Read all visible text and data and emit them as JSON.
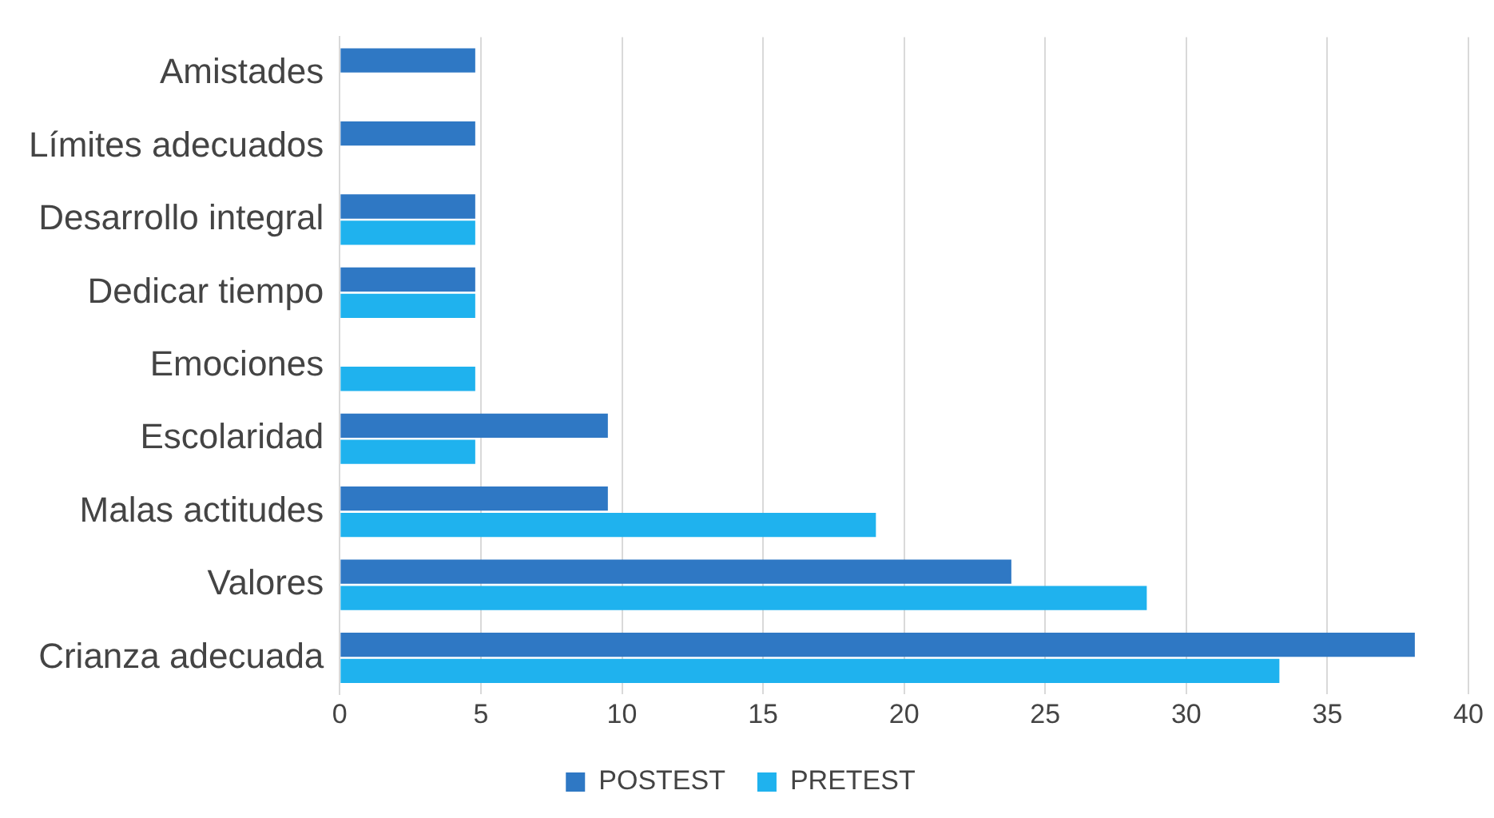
{
  "chart_data": {
    "type": "bar",
    "orientation": "horizontal",
    "categories": [
      "Amistades",
      "Límites adecuados",
      "Desarrollo integral",
      "Dedicar tiempo",
      "Emociones",
      "Escolaridad",
      "Malas actitudes",
      "Valores",
      "Crianza adecuada"
    ],
    "series": [
      {
        "name": "POSTEST",
        "color": "#2f78c4",
        "values": [
          4.8,
          4.8,
          4.8,
          4.8,
          null,
          9.5,
          9.5,
          23.8,
          38.1
        ]
      },
      {
        "name": "PRETEST",
        "color": "#1fb2ee",
        "values": [
          null,
          null,
          4.8,
          4.8,
          4.8,
          4.8,
          19.0,
          28.6,
          33.3
        ]
      }
    ],
    "xlim": [
      0,
      40
    ],
    "xticks": [
      0,
      5,
      10,
      15,
      20,
      25,
      30,
      35,
      40
    ],
    "grid": "x",
    "legend": "bottom"
  }
}
